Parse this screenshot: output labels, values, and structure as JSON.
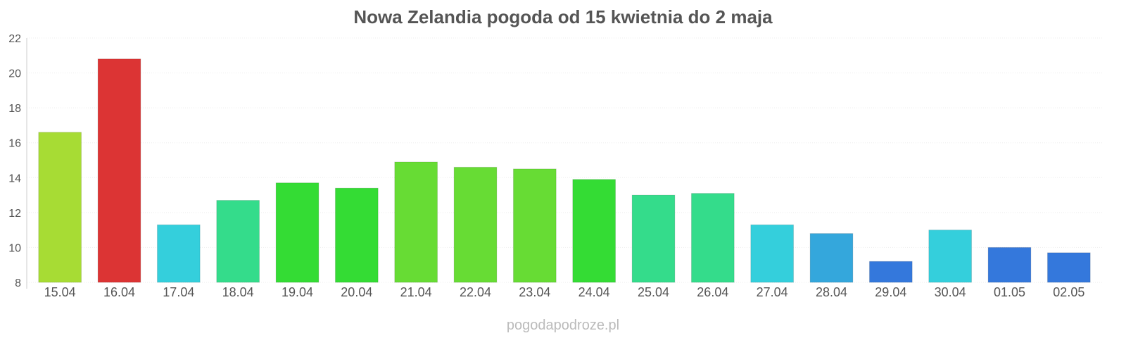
{
  "chart_data": {
    "type": "bar",
    "title": "Nowa Zelandia pogoda od 15 kwietnia do 2 maja",
    "xlabel": "",
    "ylabel": "",
    "categories": [
      "15.04",
      "16.04",
      "17.04",
      "18.04",
      "19.04",
      "20.04",
      "21.04",
      "22.04",
      "23.04",
      "24.04",
      "25.04",
      "26.04",
      "27.04",
      "28.04",
      "29.04",
      "30.04",
      "01.05",
      "02.05"
    ],
    "values": [
      16.6,
      20.8,
      11.3,
      12.7,
      13.7,
      13.4,
      14.9,
      14.6,
      14.5,
      13.9,
      13.0,
      13.1,
      11.3,
      10.8,
      9.2,
      11.0,
      10.0,
      9.7
    ],
    "colors": [
      "#a7dc34",
      "#dc3434",
      "#34cfdc",
      "#34dc8b",
      "#34dc34",
      "#34dc34",
      "#67dc34",
      "#67dc34",
      "#67dc34",
      "#34dc34",
      "#34dc8b",
      "#34dc8b",
      "#34cfdc",
      "#34a7dc",
      "#3478dc",
      "#34cfdc",
      "#3478dc",
      "#3478dc"
    ],
    "ylim": [
      8,
      22
    ],
    "yticks": [
      8,
      10,
      12,
      14,
      16,
      18,
      20,
      22
    ],
    "grid": true,
    "legend": "none"
  },
  "watermark": "pogodapodroze.pl"
}
